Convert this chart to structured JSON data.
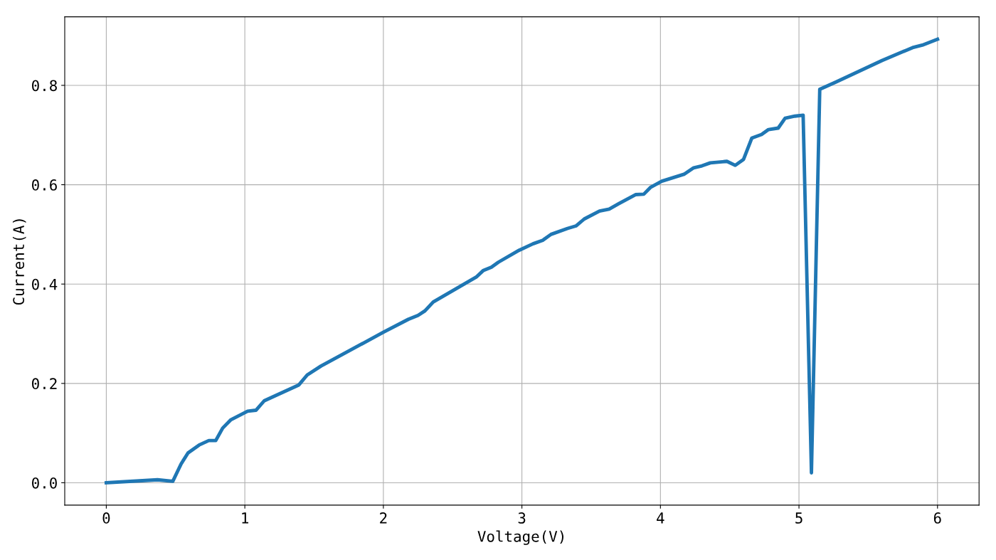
{
  "chart_data": {
    "type": "line",
    "xlabel": "Voltage(V)",
    "ylabel": "Current(A)",
    "x": [
      0,
      0.37,
      0.48,
      0.54,
      0.59,
      0.67,
      0.74,
      0.79,
      0.84,
      0.9,
      1.02,
      1.08,
      1.14,
      1.21,
      1.39,
      1.45,
      1.55,
      2.0,
      2.18,
      2.25,
      2.3,
      2.36,
      2.67,
      2.72,
      2.78,
      2.83,
      2.98,
      3.08,
      3.15,
      3.21,
      3.33,
      3.39,
      3.45,
      3.56,
      3.63,
      3.7,
      3.82,
      3.88,
      3.93,
      4.01,
      4.17,
      4.24,
      4.3,
      4.36,
      4.48,
      4.54,
      4.6,
      4.66,
      4.73,
      4.78,
      4.85,
      4.9,
      4.97,
      5.03,
      5.09,
      5.15,
      5.27,
      5.6,
      5.82,
      5.89,
      6.0
    ],
    "series": [
      {
        "color": "#1f77b4",
        "values": [
          0,
          0.006,
          0.003,
          0.038,
          0.06,
          0.076,
          0.085,
          0.085,
          0.11,
          0.127,
          0.144,
          0.146,
          0.165,
          0.174,
          0.197,
          0.217,
          0.235,
          0.303,
          0.329,
          0.337,
          0.346,
          0.364,
          0.414,
          0.427,
          0.434,
          0.444,
          0.468,
          0.481,
          0.488,
          0.5,
          0.512,
          0.517,
          0.531,
          0.547,
          0.551,
          0.562,
          0.58,
          0.581,
          0.595,
          0.607,
          0.621,
          0.634,
          0.638,
          0.644,
          0.647,
          0.639,
          0.651,
          0.694,
          0.701,
          0.711,
          0.714,
          0.734,
          0.738,
          0.74,
          0.02,
          0.792,
          0.807,
          0.85,
          0.876,
          0.881,
          0.893
        ]
      }
    ],
    "xlim": [
      -0.3,
      6.3
    ],
    "ylim": [
      -0.045,
      0.938
    ],
    "xticks": [
      0,
      1,
      2,
      3,
      4,
      5,
      6
    ],
    "yticks": [
      {
        "value": 0,
        "label": "0.0"
      },
      {
        "value": 0.2,
        "label": "0.2"
      },
      {
        "value": 0.4,
        "label": "0.4"
      },
      {
        "value": 0.6,
        "label": "0.6"
      },
      {
        "value": 0.8,
        "label": "0.8"
      }
    ],
    "grid": true,
    "line_style": "solid"
  }
}
